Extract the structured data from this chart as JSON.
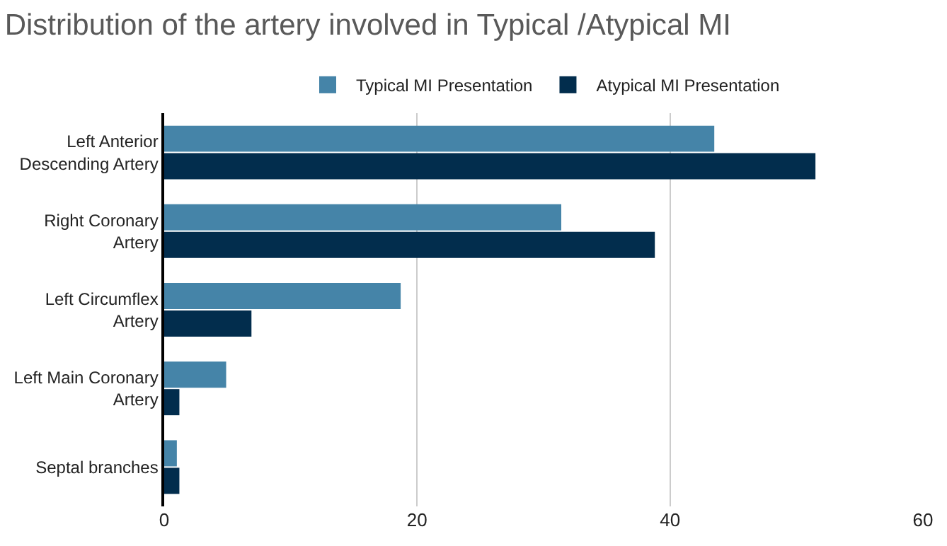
{
  "chart_data": {
    "type": "bar",
    "orientation": "horizontal",
    "title": "Distribution of the artery involved in Typical /Atypical MI",
    "categories": [
      "Left Anterior\nDescending Artery",
      "Right Coronary\nArtery",
      "Left Circumflex\nArtery",
      "Left Main Coronary\nArtery",
      "Septal branches"
    ],
    "series": [
      {
        "name": "Typical MI Presentation",
        "color": "#4584a8",
        "values": [
          43.5,
          31.4,
          18.7,
          4.9,
          1.0
        ]
      },
      {
        "name": "Atypical MI Presentation",
        "color": "#022d4d",
        "values": [
          51.5,
          38.8,
          6.9,
          1.2,
          1.2
        ]
      }
    ],
    "xlim": [
      0,
      60
    ],
    "xticks": [
      0,
      20,
      40,
      60
    ],
    "grid": "x",
    "legend": "top"
  }
}
